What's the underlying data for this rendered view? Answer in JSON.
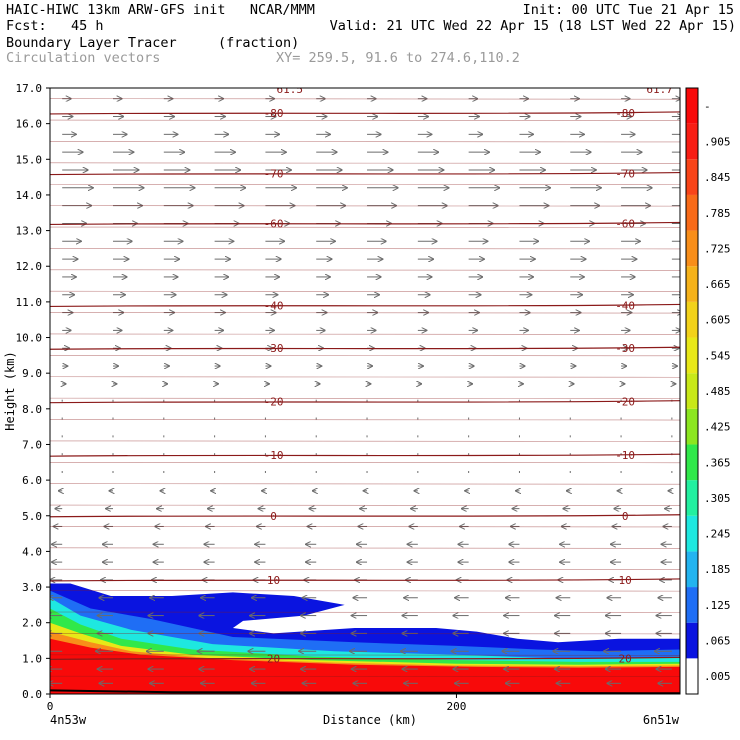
{
  "header": {
    "line1_left": "HAIC-HIWC 13km ARW-GFS init   NCAR/MMM",
    "line1_right": "Init: 00 UTC Tue 21 Apr 15",
    "line2_left": "Fcst:   45 h",
    "line2_right": "Valid: 21 UTC Wed 22 Apr 15 (18 LST Wed 22 Apr 15)",
    "line3_left": "Boundary Layer Tracer",
    "line3_unit": "(fraction)",
    "line4_left": "Circulation vectors",
    "line4_xy": "XY= 259.5, 91.6 to 274.6,110.2"
  },
  "chart_data": {
    "type": "heatmap",
    "ylabel": "Height (km)",
    "xlabel": "Distance (km)",
    "x_range": [
      0,
      310
    ],
    "y_range": [
      0.0,
      17.0
    ],
    "y_ticks": [
      "0.0",
      "1.0",
      "2.0",
      "3.0",
      "4.0",
      "5.0",
      "6.0",
      "7.0",
      "8.0",
      "9.0",
      "10.0",
      "11.0",
      "12.0",
      "13.0",
      "14.0",
      "15.0",
      "16.0",
      "17.0"
    ],
    "x_ticks": [
      "0",
      "200"
    ],
    "x_start_label": "4n53w",
    "x_end_label": "6n51w",
    "colorbar_labels": [
      ".005",
      ".065",
      ".125",
      ".185",
      ".245",
      ".305",
      ".365",
      ".425",
      ".485",
      ".545",
      ".605",
      ".665",
      ".725",
      ".785",
      ".845",
      ".905",
      "-"
    ],
    "colorbar_colors": [
      "#ffffff",
      "#0a14e0",
      "#1f6ef5",
      "#23b4f0",
      "#1ee8e0",
      "#22f0a0",
      "#30e84a",
      "#8ce620",
      "#c8e818",
      "#e8e818",
      "#f2d21a",
      "#f5b21a",
      "#f88e1a",
      "#f86a18",
      "#f84418",
      "#f81e14",
      "#f80a0a"
    ],
    "temperature_contours": [
      {
        "label": "-80",
        "height": 16.3
      },
      {
        "label": "-70",
        "height": 14.6
      },
      {
        "label": "-60",
        "height": 13.2
      },
      {
        "label": "-40",
        "height": 10.9
      },
      {
        "label": "-30",
        "height": 9.7
      },
      {
        "label": "-20",
        "height": 8.2
      },
      {
        "label": "-10",
        "height": 6.7
      },
      {
        "label": "0",
        "height": 5.0
      },
      {
        "label": "10",
        "height": 3.2
      },
      {
        "label": "20",
        "height": 1.0
      }
    ],
    "top_labels": [
      "61.5",
      "61.7"
    ],
    "bl_tracer_top_km": [
      3.1,
      3.1,
      2.7,
      2.7,
      2.8,
      2.7,
      2.5,
      2.0,
      1.9,
      1.9,
      1.8,
      1.6,
      1.5,
      1.5,
      1.5,
      1.6
    ],
    "bl_tracer_x_km": [
      0,
      10,
      30,
      60,
      90,
      120,
      145,
      100,
      160,
      200,
      220,
      240,
      260,
      280,
      300,
      310
    ],
    "vector_rows_km": [
      16.7,
      16.2,
      15.7,
      15.2,
      14.7,
      14.2,
      13.7,
      13.2,
      12.7,
      12.2,
      11.7,
      11.2,
      10.7,
      10.2,
      9.7,
      9.2,
      8.7,
      8.2,
      7.7,
      7.2,
      6.7,
      6.2,
      5.7,
      5.2,
      4.7,
      4.2,
      3.7,
      3.2,
      2.7,
      2.2,
      1.7,
      1.2,
      0.7,
      0.3
    ],
    "vector_u_by_row": [
      0.25,
      0.3,
      0.4,
      0.6,
      0.75,
      0.9,
      0.85,
      0.7,
      0.55,
      0.45,
      0.4,
      0.35,
      0.3,
      0.25,
      0.2,
      0.15,
      0.1,
      0.05,
      0.05,
      0.05,
      0.05,
      0.05,
      -0.1,
      -0.2,
      -0.25,
      -0.3,
      -0.3,
      -0.35,
      -0.4,
      -0.45,
      -0.45,
      -0.5,
      -0.45,
      -0.4
    ]
  }
}
